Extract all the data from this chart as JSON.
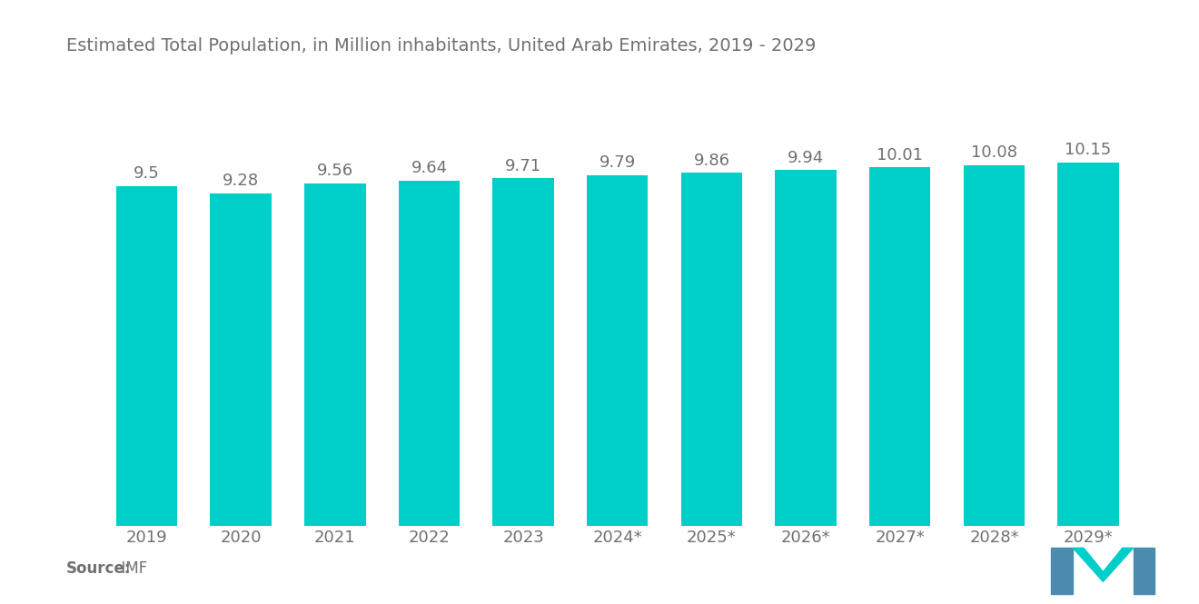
{
  "title": "Estimated Total Population, in Million inhabitants, United Arab Emirates, 2019 - 2029",
  "categories": [
    "2019",
    "2020",
    "2021",
    "2022",
    "2023",
    "2024*",
    "2025*",
    "2026*",
    "2027*",
    "2028*",
    "2029*"
  ],
  "values": [
    9.5,
    9.28,
    9.56,
    9.64,
    9.71,
    9.79,
    9.86,
    9.94,
    10.01,
    10.08,
    10.15
  ],
  "bar_color": "#00CEC9",
  "background_color": "#ffffff",
  "title_color": "#707070",
  "label_color": "#707070",
  "tick_color": "#707070",
  "source_text_bold": "Source:",
  "source_text_normal": "  IMF",
  "title_fontsize": 14,
  "label_fontsize": 13,
  "tick_fontsize": 13,
  "source_fontsize": 12,
  "ylim": [
    0,
    12.5
  ],
  "bar_width": 0.65,
  "logo_left_color": "#4A8BAE",
  "logo_right_color": "#4A8BAE",
  "logo_mid_color": "#00CEC9"
}
